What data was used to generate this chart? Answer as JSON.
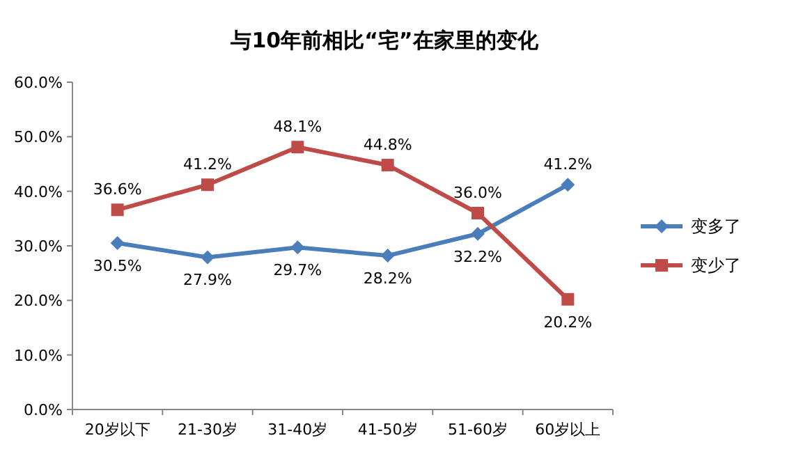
{
  "chart_data": {
    "type": "line",
    "title": "与10年前相比“宅”在家里的变化",
    "categories": [
      "20岁以下",
      "21-30岁",
      "31-40岁",
      "41-50岁",
      "51-60岁",
      "60岁以上"
    ],
    "series": [
      {
        "name": "变多了",
        "color": "#4a7ebb",
        "marker": "diamond",
        "values": [
          30.5,
          27.9,
          29.7,
          28.2,
          32.2,
          41.2
        ],
        "value_labels": [
          "30.5%",
          "27.9%",
          "29.7%",
          "28.2%",
          "32.2%",
          "41.2%"
        ]
      },
      {
        "name": "变少了",
        "color": "#be4b48",
        "marker": "square",
        "values": [
          36.6,
          41.2,
          48.1,
          44.8,
          36.0,
          20.2
        ],
        "value_labels": [
          "36.6%",
          "41.2%",
          "48.1%",
          "44.8%",
          "36.0%",
          "20.2%"
        ]
      }
    ],
    "ylim": [
      0,
      60
    ],
    "yticks": [
      {
        "value": 0,
        "label": "0.0%"
      },
      {
        "value": 10,
        "label": "10.0%"
      },
      {
        "value": 20,
        "label": "20.0%"
      },
      {
        "value": 30,
        "label": "30.0%"
      },
      {
        "value": 40,
        "label": "40.0%"
      },
      {
        "value": 50,
        "label": "50.0%"
      },
      {
        "value": 60,
        "label": "60.0%"
      }
    ],
    "legend": "right",
    "grid": false
  }
}
